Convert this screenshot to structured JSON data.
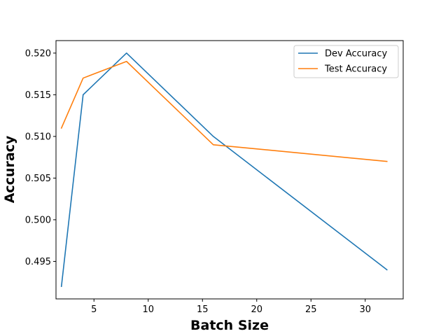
{
  "chart_data": {
    "type": "line",
    "title": "",
    "xlabel": "Batch Size",
    "ylabel": "Accuracy",
    "xlim": [
      1.5,
      33.5
    ],
    "ylim": [
      0.4905,
      0.5215
    ],
    "xticks": [
      5,
      10,
      15,
      20,
      25,
      30
    ],
    "yticks": [
      0.495,
      0.5,
      0.505,
      0.51,
      0.515,
      0.52
    ],
    "ytick_labels": [
      "0.495",
      "0.500",
      "0.505",
      "0.510",
      "0.515",
      "0.520"
    ],
    "grid": false,
    "legend_position": "top-right",
    "x": [
      2,
      4,
      8,
      16,
      32
    ],
    "series": [
      {
        "name": "Dev Accuracy",
        "color": "#1f77b4",
        "values": [
          0.492,
          0.515,
          0.52,
          0.51,
          0.494
        ]
      },
      {
        "name": "Test Accuracy",
        "color": "#ff7f0e",
        "values": [
          0.511,
          0.517,
          0.519,
          0.509,
          0.507
        ]
      }
    ]
  }
}
